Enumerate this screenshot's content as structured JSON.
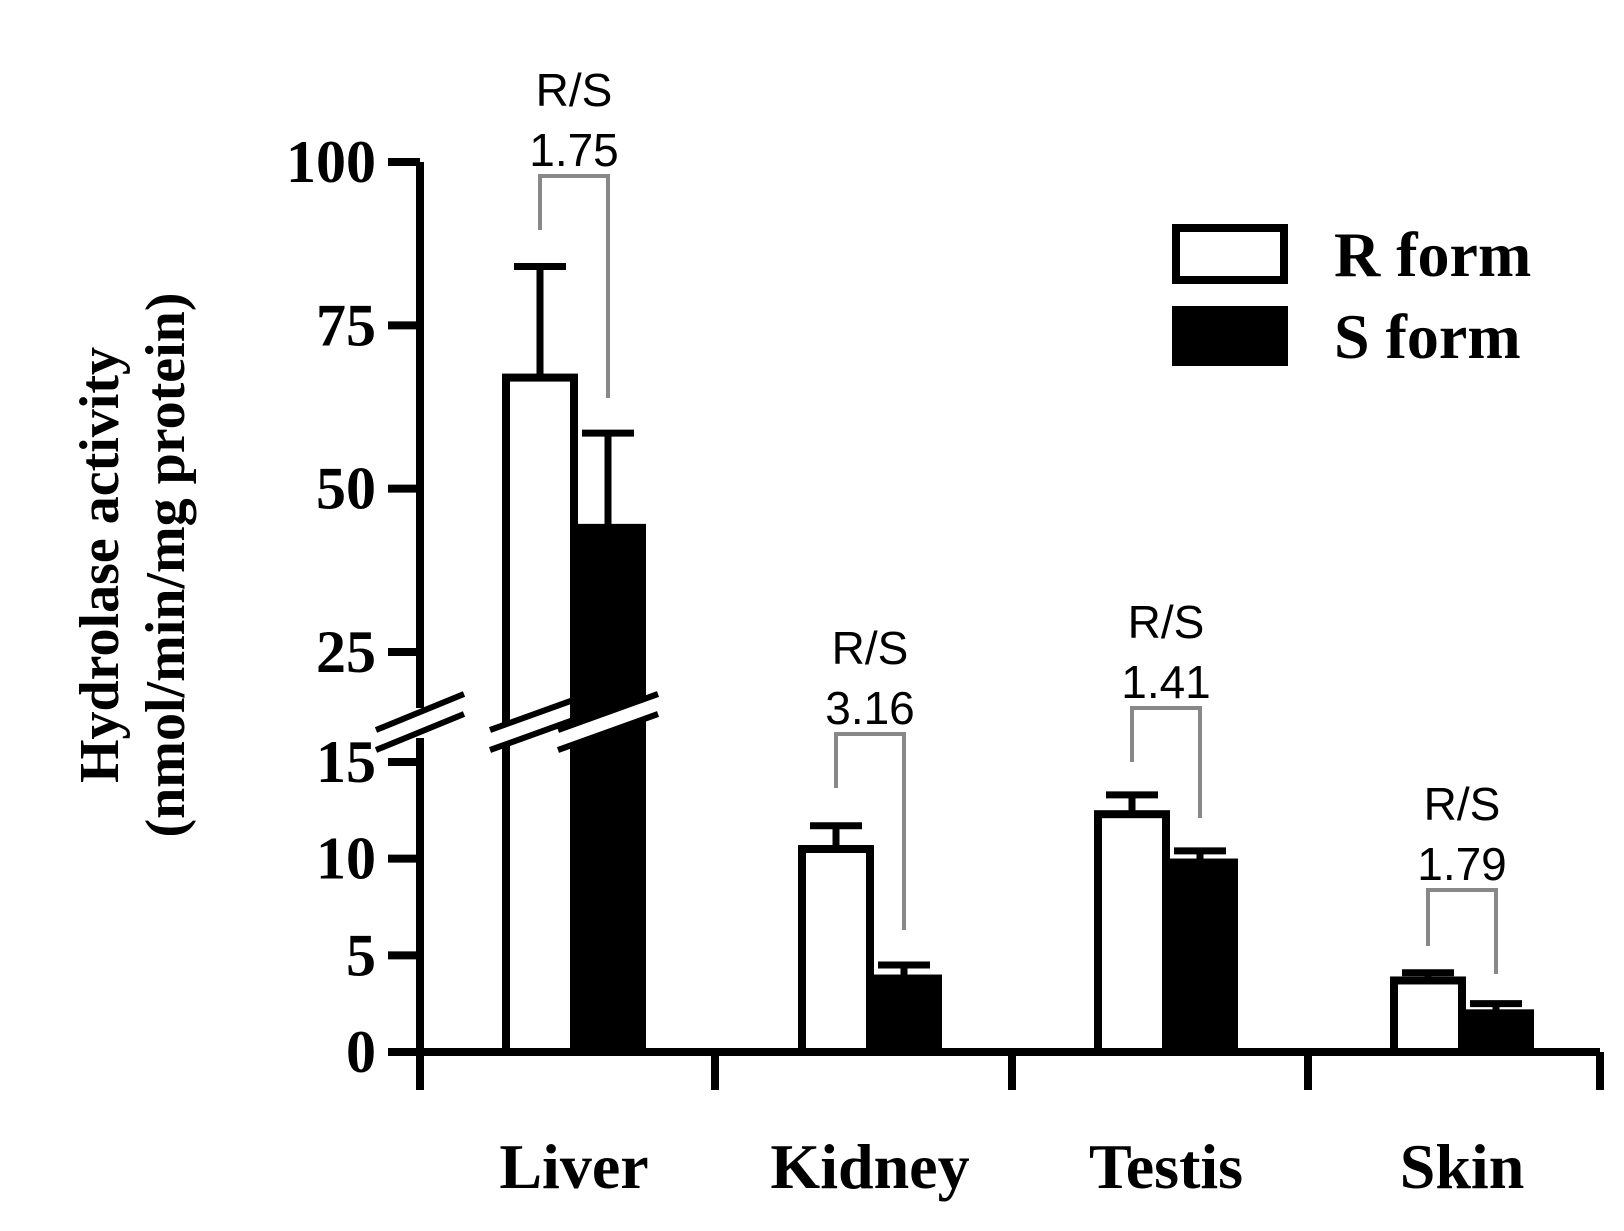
{
  "chart_data": {
    "type": "bar",
    "ylabel_line1": "Hydrolase activity",
    "ylabel_line2": "(nmol/min/mg protein)",
    "categories": [
      "Liver",
      "Kidney",
      "Testis",
      "Skin"
    ],
    "series": [
      {
        "name": "R form",
        "fill": "#ffffff",
        "values": [
          67,
          10.5,
          12.3,
          3.7
        ],
        "errors": [
          17,
          1.2,
          1.0,
          0.4
        ]
      },
      {
        "name": "S form",
        "fill": "#000000",
        "values": [
          44,
          3.8,
          9.8,
          2.0
        ],
        "errors": [
          14.5,
          0.7,
          0.6,
          0.5
        ]
      }
    ],
    "y_ticks_lower": [
      0,
      5,
      10,
      15
    ],
    "y_ticks_upper": [
      25,
      50,
      75,
      100
    ],
    "y_axis_break": [
      15,
      20
    ],
    "ylim": [
      0,
      100
    ],
    "ratios": [
      {
        "category": "Liver",
        "label": "R/S",
        "value": "1.75"
      },
      {
        "category": "Kidney",
        "label": "R/S",
        "value": "3.16"
      },
      {
        "category": "Testis",
        "label": "R/S",
        "value": "1.41"
      },
      {
        "category": "Skin",
        "label": "R/S",
        "value": "1.79"
      }
    ],
    "legend": {
      "position": "top-right",
      "entries": [
        "R form",
        "S form"
      ]
    },
    "colors": {
      "axis": "#000000",
      "bracket": "#888888"
    }
  }
}
